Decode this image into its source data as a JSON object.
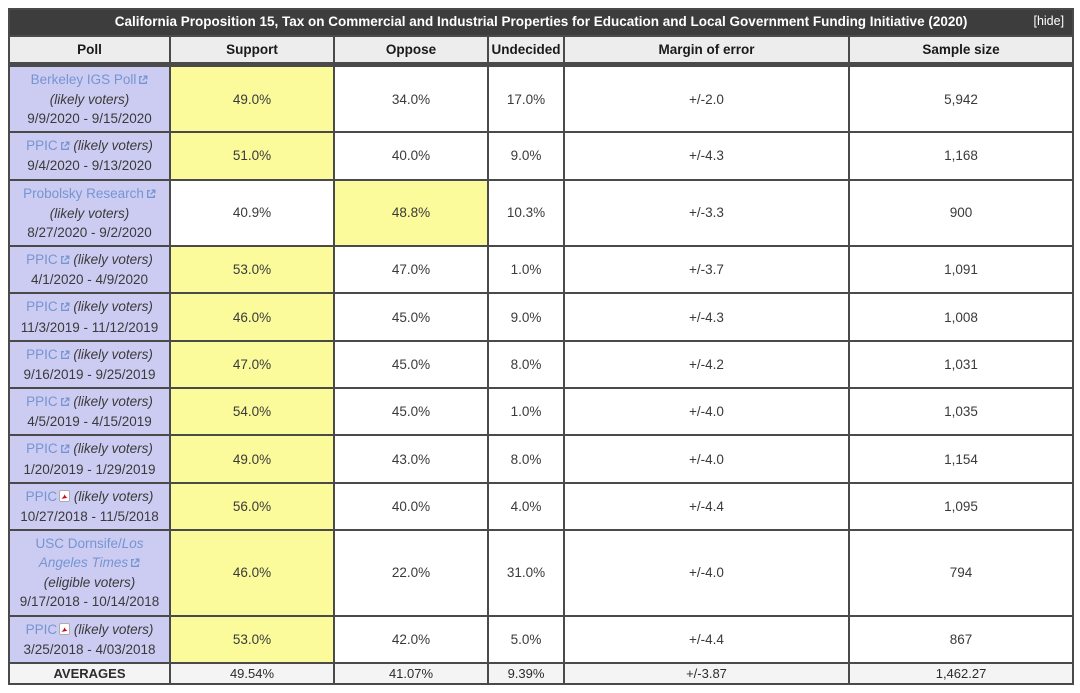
{
  "header": {
    "title": "California Proposition 15, Tax on Commercial and Industrial Properties for Education and Local Government Funding Initiative (2020)",
    "hide_label": "[hide]"
  },
  "colors": {
    "title_bar": "#3d3d3d",
    "header_row": "#ededed",
    "poll_cell": "#ccccf2",
    "highlight": "#fbfb9b",
    "link": "#7495d2",
    "averages_row": "#f4f4f4"
  },
  "icons": {
    "external_link": "external-link-icon",
    "pdf": "pdf-icon"
  },
  "table": {
    "columns": [
      "Poll",
      "Support",
      "Oppose",
      "Undecided",
      "Margin of error",
      "Sample size"
    ],
    "rows": [
      {
        "poll_name": "Berkeley IGS Poll",
        "poll_name_italic": "",
        "icon": "external-link",
        "voter_type": "(likely voters)",
        "dates": "9/9/2020 - 9/15/2020",
        "support": "49.0%",
        "oppose": "34.0%",
        "undecided": "17.0%",
        "margin_of_error": "+/-2.0",
        "sample_size": "5,942",
        "highlight": "support"
      },
      {
        "poll_name": "PPIC",
        "poll_name_italic": "",
        "icon": "external-link",
        "voter_type": "(likely voters)",
        "dates": "9/4/2020 - 9/13/2020",
        "support": "51.0%",
        "oppose": "40.0%",
        "undecided": "9.0%",
        "margin_of_error": "+/-4.3",
        "sample_size": "1,168",
        "highlight": "support"
      },
      {
        "poll_name": "Probolsky Research",
        "poll_name_italic": "",
        "icon": "external-link",
        "voter_type": "(likely voters)",
        "dates": "8/27/2020 - 9/2/2020",
        "support": "40.9%",
        "oppose": "48.8%",
        "undecided": "10.3%",
        "margin_of_error": "+/-3.3",
        "sample_size": "900",
        "highlight": "oppose"
      },
      {
        "poll_name": "PPIC",
        "poll_name_italic": "",
        "icon": "external-link",
        "voter_type": "(likely voters)",
        "dates": "4/1/2020 - 4/9/2020",
        "support": "53.0%",
        "oppose": "47.0%",
        "undecided": "1.0%",
        "margin_of_error": "+/-3.7",
        "sample_size": "1,091",
        "highlight": "support"
      },
      {
        "poll_name": "PPIC",
        "poll_name_italic": "",
        "icon": "external-link",
        "voter_type": "(likely voters)",
        "dates": "11/3/2019 - 11/12/2019",
        "support": "46.0%",
        "oppose": "45.0%",
        "undecided": "9.0%",
        "margin_of_error": "+/-4.3",
        "sample_size": "1,008",
        "highlight": "support"
      },
      {
        "poll_name": "PPIC",
        "poll_name_italic": "",
        "icon": "external-link",
        "voter_type": "(likely voters)",
        "dates": "9/16/2019 - 9/25/2019",
        "support": "47.0%",
        "oppose": "45.0%",
        "undecided": "8.0%",
        "margin_of_error": "+/-4.2",
        "sample_size": "1,031",
        "highlight": "support"
      },
      {
        "poll_name": "PPIC",
        "poll_name_italic": "",
        "icon": "external-link",
        "voter_type": "(likely voters)",
        "dates": "4/5/2019 - 4/15/2019",
        "support": "54.0%",
        "oppose": "45.0%",
        "undecided": "1.0%",
        "margin_of_error": "+/-4.0",
        "sample_size": "1,035",
        "highlight": "support"
      },
      {
        "poll_name": "PPIC",
        "poll_name_italic": "",
        "icon": "external-link",
        "voter_type": "(likely voters)",
        "dates": "1/20/2019 - 1/29/2019",
        "support": "49.0%",
        "oppose": "43.0%",
        "undecided": "8.0%",
        "margin_of_error": "+/-4.0",
        "sample_size": "1,154",
        "highlight": "support"
      },
      {
        "poll_name": "PPIC",
        "poll_name_italic": "",
        "icon": "pdf",
        "voter_type": "(likely voters)",
        "dates": "10/27/2018 - 11/5/2018",
        "support": "56.0%",
        "oppose": "40.0%",
        "undecided": "4.0%",
        "margin_of_error": "+/-4.4",
        "sample_size": "1,095",
        "highlight": "support"
      },
      {
        "poll_name": "USC Dornsife/",
        "poll_name_italic": "Los Angeles Times",
        "icon": "external-link",
        "voter_type": "(eligible voters)",
        "dates": "9/17/2018 - 10/14/2018",
        "support": "46.0%",
        "oppose": "22.0%",
        "undecided": "31.0%",
        "margin_of_error": "+/-4.0",
        "sample_size": "794",
        "highlight": "support"
      },
      {
        "poll_name": "PPIC",
        "poll_name_italic": "",
        "icon": "pdf",
        "voter_type": "(likely voters)",
        "dates": "3/25/2018 - 4/03/2018",
        "support": "53.0%",
        "oppose": "42.0%",
        "undecided": "5.0%",
        "margin_of_error": "+/-4.4",
        "sample_size": "867",
        "highlight": "support"
      }
    ],
    "averages": {
      "label": "AVERAGES",
      "support": "49.54%",
      "oppose": "41.07%",
      "undecided": "9.39%",
      "margin_of_error": "+/-3.87",
      "sample_size": "1,462.27"
    }
  }
}
